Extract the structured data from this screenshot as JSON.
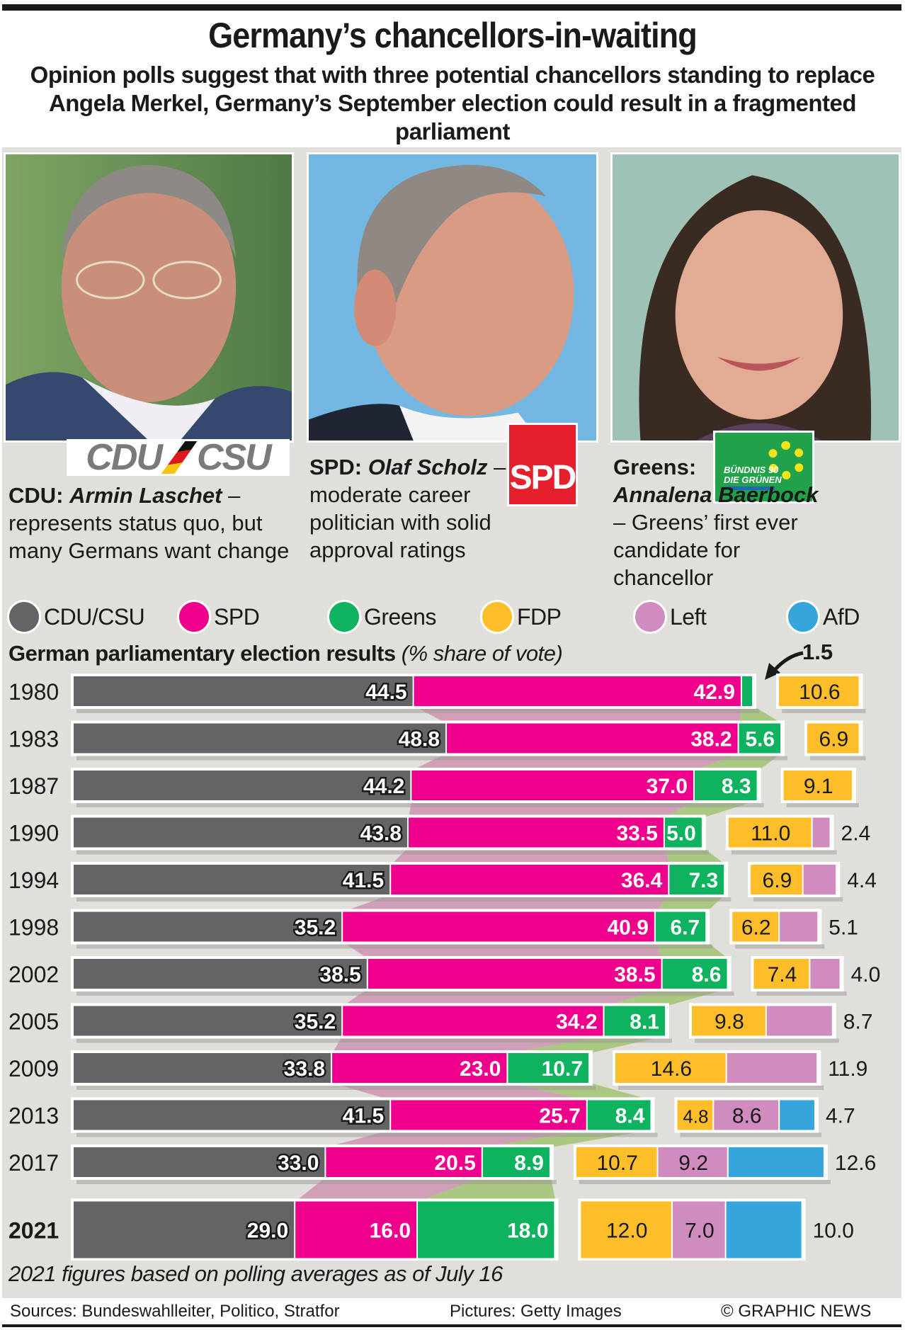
{
  "header": {
    "title": "Germany’s chancellors-in-waiting",
    "subtitle": "Opinion polls suggest that with three potential chancellors standing to replace Angela Merkel, Germany’s September election could result in a fragmented parliament"
  },
  "candidates": [
    {
      "party": "CDU:",
      "name": "Armin Laschet",
      "dash": " –",
      "description": "represents status quo, but many Germans want change",
      "logo_text": "CDU CSU",
      "photo": "Armin Laschet portrait"
    },
    {
      "party": "SPD:",
      "name": "Olaf Scholz",
      "dash": " –",
      "description": "moderate career politician with solid approval ratings",
      "logo_text": "SPD",
      "photo": "Olaf Scholz portrait"
    },
    {
      "party": "Greens:",
      "name": "Annalena Baerbock",
      "dash": " – ",
      "description": "Greens’ first ever candidate for chancellor",
      "logo_text_line1": "BÜNDNIS 90",
      "logo_text_line2": "DIE GRÜNEN",
      "photo": "Annalena Baerbock portrait"
    }
  ],
  "legend": [
    {
      "label": "CDU/CSU",
      "color": "#636466"
    },
    {
      "label": "SPD",
      "color": "#ec008c"
    },
    {
      "label": "Greens",
      "color": "#0fb25e"
    },
    {
      "label": "FDP",
      "color": "#fdbe2a"
    },
    {
      "label": "Left",
      "color": "#d08bbf"
    },
    {
      "label": "AfD",
      "color": "#35a5dc"
    }
  ],
  "chart_data": {
    "type": "bar",
    "stacked": true,
    "orientation": "horizontal",
    "title": "German parliamentary election results",
    "title_note": "(% share of vote)",
    "annotation": {
      "year": "1980",
      "party": "Greens",
      "value": "1.5"
    },
    "categories": [
      "1980",
      "1983",
      "1987",
      "1990",
      "1994",
      "1998",
      "2002",
      "2005",
      "2009",
      "2013",
      "2017",
      "2021"
    ],
    "series": [
      {
        "name": "CDU/CSU",
        "color": "#636466",
        "values": [
          44.5,
          48.8,
          44.2,
          43.8,
          41.5,
          35.2,
          38.5,
          35.2,
          33.8,
          41.5,
          33.0,
          29.0
        ]
      },
      {
        "name": "SPD",
        "color": "#ec008c",
        "values": [
          42.9,
          38.2,
          37.0,
          33.5,
          36.4,
          40.9,
          38.5,
          34.2,
          23.0,
          25.7,
          20.5,
          16.0
        ]
      },
      {
        "name": "Greens",
        "color": "#0fb25e",
        "values": [
          1.5,
          5.6,
          8.3,
          5.0,
          7.3,
          6.7,
          8.6,
          8.1,
          10.7,
          8.4,
          8.9,
          18.0
        ]
      },
      {
        "name": "FDP",
        "color": "#fdbe2a",
        "values": [
          10.6,
          6.9,
          9.1,
          11.0,
          6.9,
          6.2,
          7.4,
          9.8,
          14.6,
          4.8,
          10.7,
          12.0
        ]
      },
      {
        "name": "Left",
        "color": "#d08bbf",
        "values": [
          null,
          null,
          null,
          2.4,
          4.4,
          5.1,
          4.0,
          8.7,
          11.9,
          8.6,
          9.2,
          7.0
        ]
      },
      {
        "name": "AfD",
        "color": "#35a5dc",
        "values": [
          null,
          null,
          null,
          null,
          null,
          null,
          null,
          null,
          null,
          4.7,
          12.6,
          10.0
        ]
      }
    ],
    "highlight_category": "2021",
    "footnote": "2021 figures based on polling averages as of July 16"
  },
  "footer": {
    "sources": "Sources: Bundeswahlleiter, Politico, Stratfor",
    "pictures": "Pictures: Getty Images",
    "credit": "© GRAPHIC NEWS"
  }
}
